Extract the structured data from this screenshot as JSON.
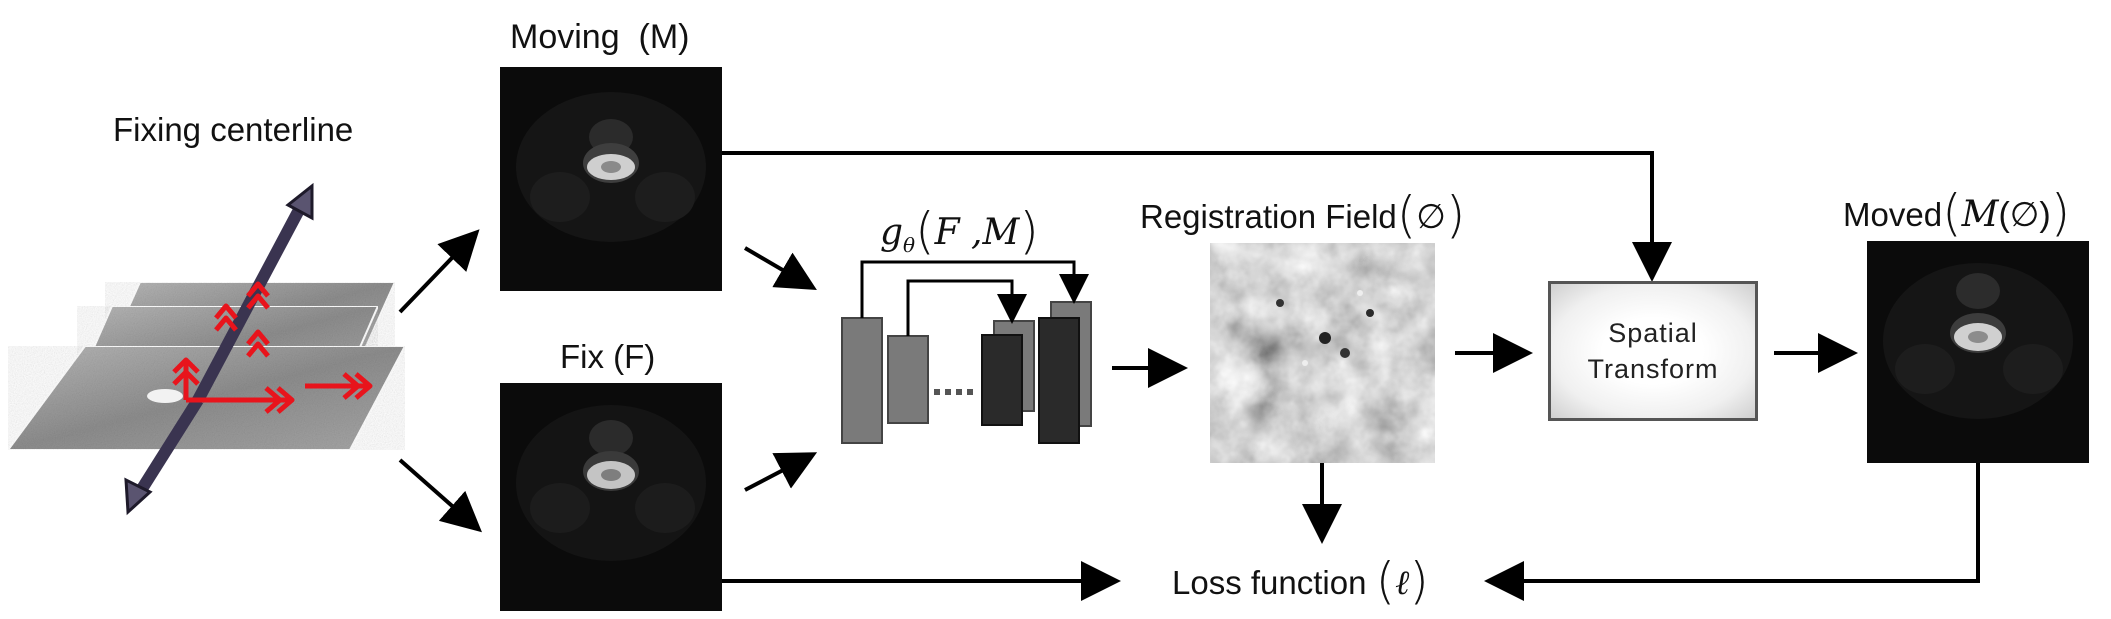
{
  "labels": {
    "fixing_centerline": "Fixing centerline",
    "moving": "Moving  (M)",
    "fix": "Fix (F)",
    "network_g": "g",
    "network_theta": "θ",
    "network_args": "F ,M",
    "registration_field": "Registration Field",
    "registration_symbol": "∅",
    "spatial_transform_line1": "Spatial",
    "spatial_transform_line2": "Transform",
    "moved": "Moved",
    "moved_symbol": "M",
    "moved_arg": "(∅)",
    "loss_function": "Loss function",
    "loss_symbol": "ℓ"
  },
  "colors": {
    "arrow": "#000000",
    "network_light": "#7a7a7a",
    "network_dark": "#2a2a2a",
    "axis_arrow": "#3a3450",
    "red_arrow": "#e8141c"
  }
}
